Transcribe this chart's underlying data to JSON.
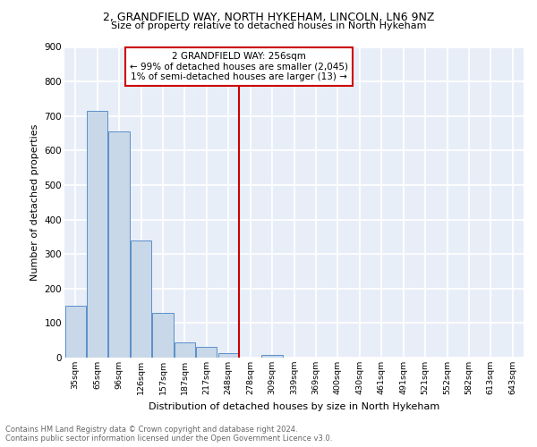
{
  "title1": "2, GRANDFIELD WAY, NORTH HYKEHAM, LINCOLN, LN6 9NZ",
  "title2": "Size of property relative to detached houses in North Hykeham",
  "xlabel": "Distribution of detached houses by size in North Hykeham",
  "ylabel": "Number of detached properties",
  "categories": [
    "35sqm",
    "65sqm",
    "96sqm",
    "126sqm",
    "157sqm",
    "187sqm",
    "217sqm",
    "248sqm",
    "278sqm",
    "309sqm",
    "339sqm",
    "369sqm",
    "400sqm",
    "430sqm",
    "461sqm",
    "491sqm",
    "521sqm",
    "552sqm",
    "582sqm",
    "613sqm",
    "643sqm"
  ],
  "values": [
    150,
    715,
    655,
    340,
    130,
    43,
    30,
    13,
    0,
    8,
    0,
    0,
    0,
    0,
    0,
    0,
    0,
    0,
    0,
    0,
    0
  ],
  "bar_color": "#c8d8e8",
  "bar_edge_color": "#5b8fc9",
  "bg_color": "#e8eef8",
  "grid_color": "#ffffff",
  "red_line_x": 7.48,
  "annotation_title": "2 GRANDFIELD WAY: 256sqm",
  "annotation_line1": "← 99% of detached houses are smaller (2,045)",
  "annotation_line2": "1% of semi-detached houses are larger (13) →",
  "annotation_box_color": "#ffffff",
  "annotation_border_color": "#cc0000",
  "red_line_color": "#cc0000",
  "footer1": "Contains HM Land Registry data © Crown copyright and database right 2024.",
  "footer2": "Contains public sector information licensed under the Open Government Licence v3.0.",
  "ylim": [
    0,
    900
  ],
  "yticks": [
    0,
    100,
    200,
    300,
    400,
    500,
    600,
    700,
    800,
    900
  ]
}
